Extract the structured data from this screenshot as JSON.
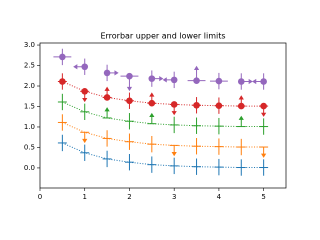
{
  "chart_data": {
    "type": "errorbar",
    "title": "Errorbar upper and lower limits",
    "xlim": [
      0,
      5.5
    ],
    "ylim": [
      -0.49,
      3.05
    ],
    "xticks": [
      0,
      1,
      2,
      3,
      4,
      5
    ],
    "yticks": [
      {
        "value": 0,
        "label": "0.0"
      },
      {
        "value": 0.5,
        "label": "0.5"
      },
      {
        "value": 1,
        "label": "1.0"
      },
      {
        "value": 1.5,
        "label": "1.5"
      },
      {
        "value": 2,
        "label": "2.0"
      },
      {
        "value": 2.5,
        "label": "2.5"
      },
      {
        "value": 3,
        "label": "3.0"
      }
    ],
    "x": [
      0.5,
      1.0,
      1.5,
      2.0,
      2.5,
      3.0,
      3.5,
      4.0,
      4.5,
      5.0
    ],
    "series": [
      {
        "color": "#1f77b4",
        "linestyle": "dotted",
        "marker": false,
        "xerr": 0.1,
        "values": [
          0.61,
          0.37,
          0.22,
          0.14,
          0.08,
          0.05,
          0.03,
          0.02,
          0.01,
          0.01
        ],
        "yerr": [
          0.2,
          0.2,
          0.2,
          0.2,
          0.2,
          0.2,
          0.2,
          0.2,
          0.2,
          0.2
        ],
        "uplims": [],
        "lolims": [],
        "xuplims": [],
        "xlolims": []
      },
      {
        "color": "#ff7f0e",
        "linestyle": "dotted",
        "marker": false,
        "xerr": 0.1,
        "values": [
          1.11,
          0.87,
          0.72,
          0.64,
          0.58,
          0.55,
          0.53,
          0.52,
          0.51,
          0.51
        ],
        "yerr": [
          0.2,
          0.2,
          0.2,
          0.2,
          0.2,
          0.2,
          0.2,
          0.2,
          0.2,
          0.2
        ],
        "uplims": [
          1,
          5,
          9
        ],
        "lolims": [],
        "xuplims": [],
        "xlolims": []
      },
      {
        "color": "#2ca02c",
        "linestyle": "dotted",
        "marker": false,
        "xerr": 0.1,
        "values": [
          1.61,
          1.37,
          1.22,
          1.14,
          1.08,
          1.05,
          1.03,
          1.02,
          1.01,
          1.01
        ],
        "yerr": [
          0.2,
          0.2,
          0.2,
          0.2,
          0.2,
          0.2,
          0.2,
          0.2,
          0.2,
          0.2
        ],
        "uplims": [],
        "lolims": [
          2,
          4,
          8
        ],
        "xuplims": [],
        "xlolims": []
      },
      {
        "color": "#d62728",
        "linestyle": "dotted",
        "marker": true,
        "xerr": 0.1,
        "values": [
          2.11,
          1.87,
          1.72,
          1.64,
          1.58,
          1.55,
          1.53,
          1.52,
          1.51,
          1.51
        ],
        "yerr": [
          0.2,
          0.2,
          0.2,
          0.2,
          0.2,
          0.2,
          0.2,
          0.2,
          0.2,
          0.2
        ],
        "uplims": [
          1,
          5,
          9
        ],
        "lolims": [
          2,
          4,
          8
        ],
        "xuplims": [],
        "xlolims": []
      },
      {
        "color": "#9467bd",
        "linestyle": "none",
        "marker": true,
        "xerr": 0.2,
        "values": [
          2.71,
          2.47,
          2.32,
          2.24,
          2.18,
          2.15,
          2.13,
          2.12,
          2.11,
          2.11
        ],
        "yerr": [
          0.2,
          0.2,
          0.2,
          0.3,
          0.2,
          0.2,
          0.3,
          0.2,
          0.2,
          0.2
        ],
        "uplims": [
          3
        ],
        "lolims": [
          6
        ],
        "xuplims": [
          1,
          5,
          9
        ],
        "xlolims": [
          2,
          4,
          8
        ]
      }
    ]
  }
}
